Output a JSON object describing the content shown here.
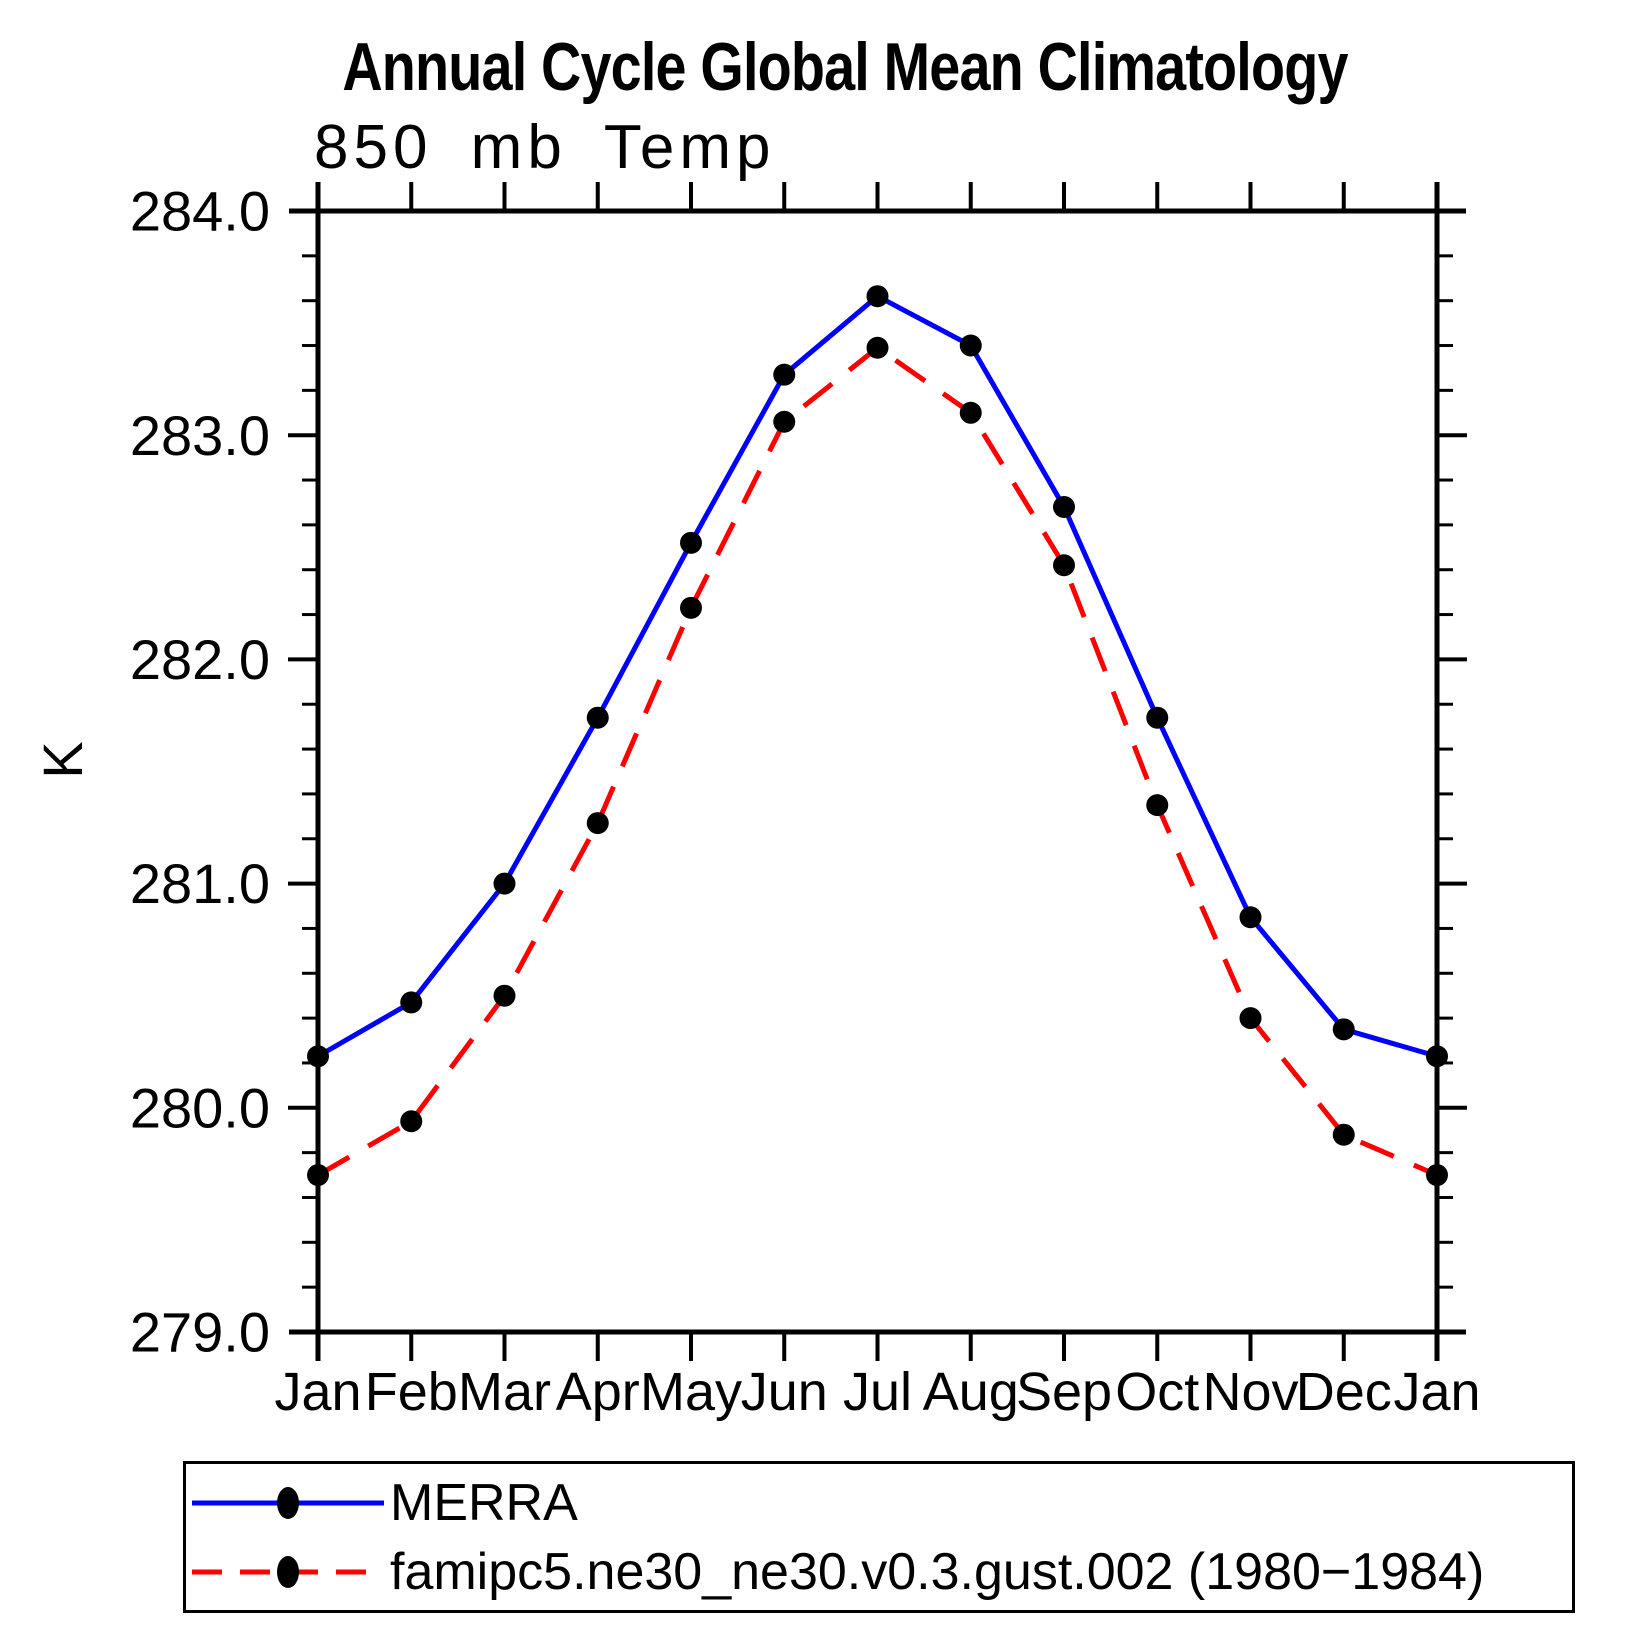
{
  "title": "Annual Cycle Global Mean Climatology",
  "subtitle": "850 mb Temp",
  "chart_data": {
    "type": "line",
    "categories": [
      "Jan",
      "Feb",
      "Mar",
      "Apr",
      "May",
      "Jun",
      "Jul",
      "Aug",
      "Sep",
      "Oct",
      "Nov",
      "Dec",
      "Jan"
    ],
    "xlabel": "",
    "ylabel": "K",
    "ylim": [
      279.0,
      284.0
    ],
    "ytick_major": [
      279.0,
      280.0,
      281.0,
      282.0,
      283.0,
      284.0
    ],
    "ytick_minor_step": 0.2,
    "grid": false,
    "legend_position": "bottom",
    "series": [
      {
        "name": "MERRA",
        "color": "#0000ff",
        "style": "solid",
        "marker": "circle",
        "marker_color": "#000000",
        "values": [
          280.23,
          280.47,
          281.0,
          281.74,
          282.52,
          283.27,
          283.62,
          283.4,
          282.68,
          281.74,
          280.85,
          280.35,
          280.23
        ]
      },
      {
        "name": "famipc5.ne30_ne30.v0.3.gust.002 (1980−1984)",
        "color": "#ff0000",
        "style": "dashed",
        "marker": "circle",
        "marker_color": "#000000",
        "values": [
          279.7,
          279.94,
          280.5,
          281.27,
          282.23,
          283.06,
          283.39,
          283.1,
          282.42,
          281.35,
          280.4,
          279.88,
          279.7
        ]
      }
    ]
  },
  "legend": {
    "entries": [
      {
        "label": "MERRA",
        "color": "#0000ff",
        "style": "solid",
        "marker": "ellipse-icon"
      },
      {
        "label": "famipc5.ne30_ne30.v0.3.gust.002 (1980−1984)",
        "color": "#ff0000",
        "style": "dashed",
        "marker": "ellipse-icon"
      }
    ]
  },
  "colors": {
    "background": "#ffffff",
    "axis": "#000000",
    "text": "#000000",
    "series_merra": "#0000ff",
    "series_model": "#ff0000",
    "marker": "#000000"
  }
}
